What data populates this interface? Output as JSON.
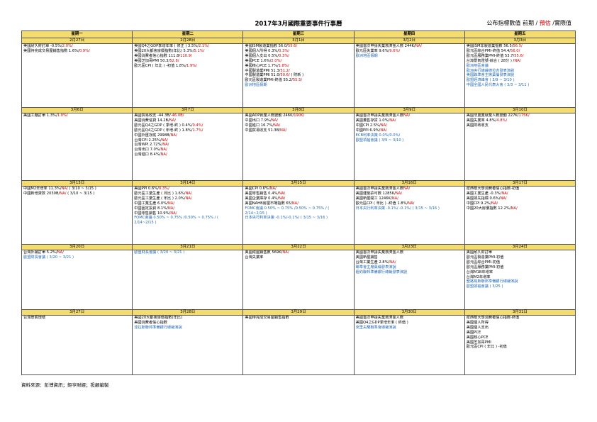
{
  "title": "2017年3月國際重要事件行事曆",
  "legend": {
    "prefix": "公布指標數值  前期 / ",
    "forecast": "預估",
    "suffix": " /實際值"
  },
  "colors": {
    "header_bg": "#f5dc6e",
    "forecast_red": "#d00000",
    "event_blue": "#1f66b5"
  },
  "weekdays": [
    "星期一",
    "星期二",
    "星期三",
    "星期四",
    "星期五"
  ],
  "weeks": [
    {
      "dates": [
        "2月27日",
        "2月28日",
        "3月1日",
        "3月2日",
        "3月3日"
      ],
      "cells": [
        [
          {
            "t": "美國耐久財訂單 -0.5%/",
            "f": "2.0%/"
          },
          {
            "t": "美國待完成交易屋銷售指數 1.6%/",
            "f": "0.9%/"
          }
        ],
        [
          {
            "t": "美國Q4之GDP季增年率 ( 修正 ) 3.5%/",
            "f": "2.1%/"
          },
          {
            "t": "美國20大都會房價指數(年比) 5.3%/",
            "f": "5.1%/"
          },
          {
            "t": "美國消費者信心指數 111.8/",
            "f": "110.9/"
          },
          {
            "t": "美國芝加哥PMI 50.3/",
            "f": "52.8/"
          },
          {
            "t": "歐元區CPI ( 年比 ) -初值 1.8%/",
            "f": "1.9%/"
          }
        ],
        [
          {
            "t": "美國ISM製造業指數 56.0/",
            "f": "55.6/"
          },
          {
            "t": "美國個人所得 0.3%/",
            "f": "0.3%/"
          },
          {
            "t": "美國個人支出 0.5%/",
            "f": "0.3%/"
          },
          {
            "t": "美國PCE 1.6%/",
            "f": "2.0%/"
          },
          {
            "t": "美國核心PCE 1.7%/",
            "f": "1.8%/"
          },
          {
            "t": "中國製造業PMI 51.3/",
            "f": "51.2/"
          },
          {
            "t": "中國製造業PMI 51.0/",
            "f": "50.6/",
            "s": " ( 財新 )"
          },
          {
            "t": "歐元區製造業PMI-終值 55.2/",
            "f": "55.5/"
          },
          {
            "t": "歐洲地區假期",
            "c": "blue"
          }
        ],
        [
          {
            "t": "美國首次申請失業救濟金人數 244K/",
            "f": "NA/"
          },
          {
            "t": "歐元區失業率 9.6%/",
            "f": "9.6%/"
          },
          {
            "t": "歐洲地區假期",
            "c": "blue"
          }
        ],
        [
          {
            "t": "美國ISM非製造業指數 56.5/",
            "f": "56.5/"
          },
          {
            "t": "歐元區綜合PMI-終值 54.4/",
            "f": "56.0/"
          },
          {
            "t": "歐元區服務業PMI-終值 53.7/",
            "f": "55.6/"
          },
          {
            "t": "台灣景氣燈號-綜合 ( 28分 ) /",
            "f": "NA/"
          },
          {
            "t": "歐洲地區會議",
            "c": "blue"
          },
          {
            "t": "歐洲央行總裁德拉吉發表演說",
            "c": "blue"
          },
          {
            "t": "美國聯準會主席葉倫發表演說",
            "c": "blue"
          },
          {
            "t": "歐盟經濟峰會 ( 3/9 ~ 3/10 )",
            "c": "blue"
          },
          {
            "t": "中國全國人民代表大會 ( 3/3 ~ 3/11 )",
            "c": "blue"
          }
        ]
      ]
    },
    {
      "dates": [
        "3月6日",
        "3月7日",
        "3月8日",
        "3月9日",
        "3月10日"
      ],
      "cells": [
        [
          {
            "t": "美國工廠訂單 1.3%/",
            "f": "1.0%/"
          }
        ],
        [
          {
            "t": "美國貿易收支 -44.3B/",
            "f": "-46.0B/"
          },
          {
            "t": "美國消費信貸 14.2B/",
            "f": "NA/"
          },
          {
            "t": "歐元區Q4之GDP ( 季增-終 ) 0.4%/",
            "f": "0.4%/"
          },
          {
            "t": "歐元區Q4之GDP ( 年增-終 ) 1.8%/",
            "f": "1.7%/"
          },
          {
            "t": "中國外匯存底 2998B/",
            "f": "NA/"
          },
          {
            "t": "台灣CPI 2.25%/",
            "f": "NA/"
          },
          {
            "t": "台灣WPI 2.72%/",
            "f": "NA/"
          },
          {
            "t": "台灣出口 7.0%/",
            "f": "NA/"
          },
          {
            "t": "台灣進口 8.4%/",
            "f": "NA/"
          }
        ],
        [
          {
            "t": "美國ADP就業人數變動 246K/",
            "f": "190K/"
          },
          {
            "t": "中國出口 7.9%/",
            "f": "NA/"
          },
          {
            "t": "中國進口 16.7%/",
            "f": "NA/"
          },
          {
            "t": "中國貿易收支 51.3B/",
            "f": "NA/"
          }
        ],
        [
          {
            "t": "美國首次申請失業救濟金人數",
            "f": "NA/"
          },
          {
            "t": "美國躉售存貨 1.0%/",
            "f": "NA/"
          },
          {
            "t": "中國CPI 2.5%/",
            "f": "NA/"
          },
          {
            "t": "中國PPI 6.9%/",
            "f": "NA/"
          },
          {
            "t": "ECB利率決策 0.0%/0.0%/",
            "c": "blue"
          },
          {
            "t": "歐盟領袖會議 ( 3/9 ~ 3/10 )",
            "c": "blue"
          }
        ],
        [
          {
            "t": "美國非農業就業人數變動 227K/",
            "f": "175K/"
          },
          {
            "t": "美國失業率 4.8%/",
            "f": "4.8%/"
          },
          {
            "t": "美國財政收支",
            "f": ""
          }
        ]
      ]
    },
    {
      "dates": [
        "3月13日",
        "3月14日",
        "3月15日",
        "3月16日",
        "3月17日"
      ],
      "cells": [
        [
          {
            "t": "中國M2年增率 11.3%/",
            "f": "NA/",
            "s": " ( 3/10 ~ 3/15 )"
          },
          {
            "t": "中國新增貸款 2030B/",
            "f": "NA/",
            "s": " ( 3/10 ~ 3/15 )"
          }
        ],
        [
          {
            "t": "美國PPI 0.6%/",
            "f": "0.3%/"
          },
          {
            "t": "歐元區工業生產 ( 月比 ) 1.6%/",
            "f": "NA/"
          },
          {
            "t": "歐元區工業生產 ( 年比 ) 2.0%/",
            "f": "NA/"
          },
          {
            "t": "中國工業生產 6.0%/",
            "f": "NA/"
          },
          {
            "t": "中國固定投資 8.1%/",
            "f": "NA/"
          },
          {
            "t": "中國零售銷售 10.9%/",
            "f": "NA/"
          },
          {
            "t": "FOMC會議 0.50% ~ 0.75% /0.50% ~ 0.75% / (",
            "c": "blue"
          },
          {
            "t": "2/14~2/15 )",
            "c": "blue"
          }
        ],
        [
          {
            "t": "美國CPI 0.6%/",
            "f": "NA/"
          },
          {
            "t": "美國零售銷售 0.4%/",
            "f": "NA/"
          },
          {
            "t": "美國企業庫存 0.4%/",
            "f": "NA/"
          },
          {
            "t": "美國NAHB房屋市場指數 65/",
            "f": "NA/"
          },
          {
            "t": "FOMC會議 0.50% ~ 0.75% /0.50% ~ 0.75% / (",
            "c": "blue"
          },
          {
            "t": "2/14~2/15 )",
            "c": "blue"
          },
          {
            "t": "日本央行利率決策 -0.1%/-0.1%/ ( 3/15 ~ 3/16 )",
            "c": "blue"
          }
        ],
        [
          {
            "t": "美國首次申請失業救濟金人數",
            "f": "NA/"
          },
          {
            "t": "美國建築許可數 1285K/",
            "f": "NA/"
          },
          {
            "t": "美國新屋開工 1246K/",
            "f": "NA/"
          },
          {
            "t": "歐元區CPI ( 年比 ) -終值 1.8%/",
            "f": "NA/"
          },
          {
            "t": "日本央行利率決策 -0.1%/ -0.1%/ ( 3/15 ~ 3/16 )",
            "c": "blue"
          }
        ],
        [
          {
            "t": "密西根大學消費者信心指數-初值",
            "f": ""
          },
          {
            "t": "美國工業生產 -0.3%/",
            "f": "NA/"
          },
          {
            "t": "美國領先指標 0.6%/",
            "f": "NA/"
          },
          {
            "t": "中國CPI   9.2%/",
            "f": "NA/"
          },
          {
            "t": "中國20大房價指數 12.2%/",
            "f": "NA/"
          }
        ]
      ]
    },
    {
      "dates": [
        "3月20日",
        "3月21日",
        "3月22日",
        "3月23日",
        "3月24日"
      ],
      "cells": [
        [
          {
            "t": "台灣外銷訂單 5.2%/",
            "f": "NA/"
          },
          {
            "t": "歐盟財長會議 ( 3/20 ~ 3/21 )",
            "c": "blue"
          }
        ],
        [
          {
            "t": "歐盟財長會議 ( 3/20 ~ 3/21 )",
            "c": "blue"
          }
        ],
        [
          {
            "t": "美國成屋銷售數 569K/",
            "f": "NA/"
          },
          {
            "t": "台灣失業率",
            "f": ""
          }
        ],
        [
          {
            "t": "美國首次申請失業救濟金人數",
            "f": ""
          },
          {
            "t": "美國新屋銷售",
            "f": ""
          },
          {
            "t": "台灣工業生產 2.8%/",
            "f": "NA/"
          },
          {
            "t": "聯準會主席葉倫發表演說",
            "c": "blue"
          },
          {
            "t": "紐約聯邦準備銀行總裁發表演說",
            "c": "blue"
          }
        ],
        [
          {
            "t": "美國耐久財訂單",
            "f": ""
          },
          {
            "t": "歐元區製造業PMI-初值",
            "f": ""
          },
          {
            "t": "歐元區綜合PMI-初值",
            "f": ""
          },
          {
            "t": "歐元區服務業PMI-初值",
            "f": ""
          },
          {
            "t": "台灣M1B年增率",
            "f": ""
          },
          {
            "t": "台灣M2年增率",
            "f": ""
          },
          {
            "t": "聖路易斯聯邦準備銀行總裁演說",
            "c": "blue"
          },
          {
            "t": "歐盟領袖會議 ( 3/25 )",
            "c": "blue"
          }
        ]
      ]
    },
    {
      "dates": [
        "3月27日",
        "3月28日",
        "3月29日",
        "3月30日",
        "3月31日"
      ],
      "cells": [
        [
          {
            "t": "台灣景氣燈號",
            "f": ""
          }
        ],
        [
          {
            "t": "美國20大都會房價指數(年比)",
            "f": ""
          },
          {
            "t": "美國消費者信心指數",
            "f": ""
          },
          {
            "t": "達拉斯聯邦準備銀行總裁演說",
            "c": "blue"
          }
        ],
        [
          {
            "t": "美國待完成交易屋銷售指數",
            "f": ""
          }
        ],
        [
          {
            "t": "美國首次申請失業救濟金人數",
            "f": ""
          },
          {
            "t": "美國Q4之GDP季增年率 ( 終值 )",
            "f": ""
          },
          {
            "t": "克里夫蘭聯準會總裁演說",
            "c": "blue"
          }
        ],
        [
          {
            "t": "密西根大學消費者信心指數-終值",
            "f": ""
          },
          {
            "t": "美國個人所得",
            "f": ""
          },
          {
            "t": "美國個人支出",
            "f": ""
          },
          {
            "t": "美國PCE",
            "f": ""
          },
          {
            "t": "美國核心PCE",
            "f": ""
          },
          {
            "t": "美國芝加哥PMI",
            "f": ""
          },
          {
            "t": "歐元區CPI ( 年比 ) -初值",
            "f": ""
          }
        ]
      ]
    }
  ],
  "source": "資料來源：彭博資訊；鉅亨財經；投顧編製"
}
